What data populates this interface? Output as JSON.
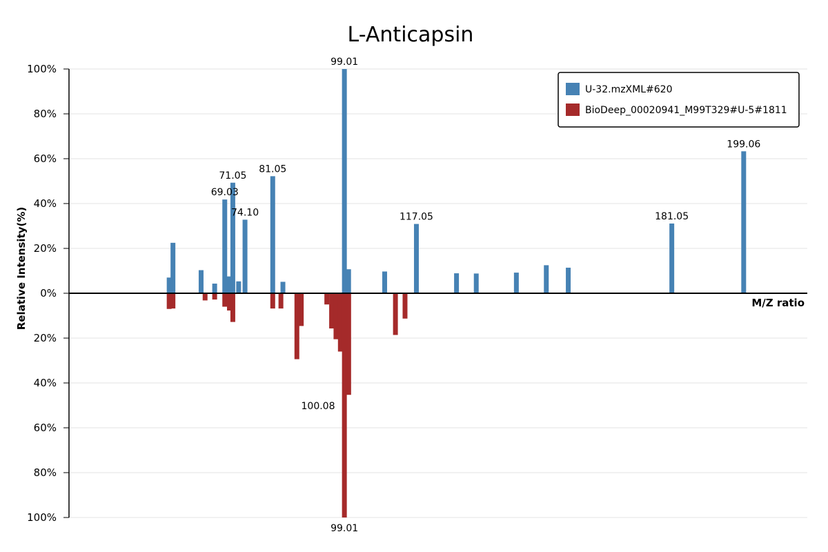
{
  "chart_data": {
    "type": "bar",
    "title": "L-Anticapsin",
    "xlabel": "M/Z ratio",
    "ylabel": "Relative Intensity(%)",
    "xlim": [
      30,
      215
    ],
    "ylim": [
      -100,
      100
    ],
    "y_ticks": [
      {
        "value": 100,
        "label": "100%"
      },
      {
        "value": 80,
        "label": "80%"
      },
      {
        "value": 60,
        "label": "60%"
      },
      {
        "value": 40,
        "label": "40%"
      },
      {
        "value": 20,
        "label": "20%"
      },
      {
        "value": 0,
        "label": "0%"
      },
      {
        "value": -20,
        "label": "20%"
      },
      {
        "value": -40,
        "label": "40%"
      },
      {
        "value": -60,
        "label": "60%"
      },
      {
        "value": -80,
        "label": "80%"
      },
      {
        "value": -100,
        "label": "100%"
      }
    ],
    "grid": true,
    "legend_position": "top-right",
    "series": [
      {
        "name": "U-32.mzXML#620",
        "color": "#4682b4",
        "direction": "up",
        "x": [
          55.1,
          56.05,
          63.1,
          66.5,
          69.03,
          70.2,
          71.05,
          72.5,
          74.1,
          81.05,
          83.6,
          99.01,
          100.06,
          109.1,
          117.05,
          127.1,
          132.05,
          142.1,
          149.6,
          155.1,
          181.05,
          199.06
        ],
        "values": [
          7,
          22.5,
          10.3,
          4.3,
          41.8,
          7.5,
          49.3,
          5.3,
          32.8,
          52.2,
          5.1,
          100,
          10.7,
          9.7,
          30.9,
          8.9,
          8.8,
          9.2,
          12.5,
          11.4,
          31.1,
          63.3
        ],
        "labels": [
          "",
          "",
          "",
          "",
          "69.03",
          "",
          "71.05",
          "",
          "74.10",
          "81.05",
          "",
          "99.01",
          "",
          "",
          "117.05",
          "",
          "",
          "",
          "",
          "",
          "181.05",
          "199.06"
        ]
      },
      {
        "name": "BioDeep_00020941_M99T329#U-5#1811",
        "color": "#a52a2a",
        "direction": "down",
        "x": [
          55.1,
          56.05,
          64.1,
          66.5,
          69.03,
          70.2,
          71.05,
          81.05,
          83.1,
          87.1,
          88.2,
          94.6,
          95.8,
          96.9,
          98.0,
          99.01,
          100.08,
          111.8,
          114.2
        ],
        "values": [
          7,
          6.8,
          3.2,
          2.8,
          6,
          7.7,
          12.8,
          6.8,
          6.8,
          29.4,
          14.6,
          5,
          15.7,
          20.5,
          26,
          100,
          45.3,
          18.6,
          11.3
        ],
        "labels": [
          "",
          "",
          "",
          "",
          "",
          "",
          "",
          "",
          "",
          "",
          "",
          "",
          "",
          "",
          "",
          "99.01",
          "100.08",
          "",
          ""
        ]
      }
    ]
  }
}
